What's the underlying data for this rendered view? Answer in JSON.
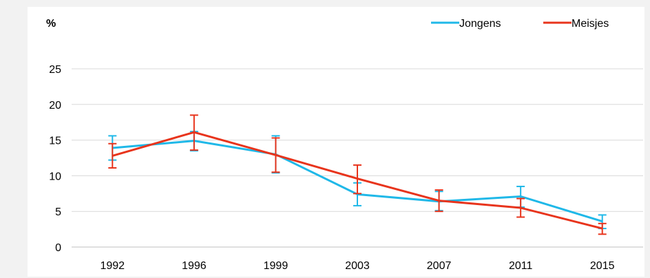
{
  "chart_data": {
    "type": "line",
    "ylabel": "%",
    "ylim": [
      0,
      25
    ],
    "yticks": [
      0,
      5,
      10,
      15,
      20,
      25
    ],
    "categories": [
      "1992",
      "1996",
      "1999",
      "2003",
      "2007",
      "2011",
      "2015"
    ],
    "grid": "horizontal",
    "legend_position": "top-right",
    "error_bars": true,
    "series": [
      {
        "name": "Jongens",
        "color": "#1fb8e8",
        "values": [
          13.9,
          14.9,
          13.0,
          7.4,
          6.4,
          7.1,
          3.6
        ],
        "error_low": [
          12.2,
          13.5,
          10.4,
          5.8,
          5.1,
          5.6,
          2.6
        ],
        "error_high": [
          15.6,
          16.2,
          15.6,
          9.0,
          7.8,
          8.5,
          4.5
        ]
      },
      {
        "name": "Meisjes",
        "color": "#e8341c",
        "values": [
          12.8,
          16.1,
          12.9,
          9.6,
          6.5,
          5.5,
          2.6
        ],
        "error_low": [
          11.1,
          13.6,
          10.5,
          7.5,
          5.0,
          4.2,
          1.8
        ],
        "error_high": [
          14.5,
          18.5,
          15.3,
          11.5,
          8.0,
          6.8,
          3.3
        ]
      }
    ]
  }
}
